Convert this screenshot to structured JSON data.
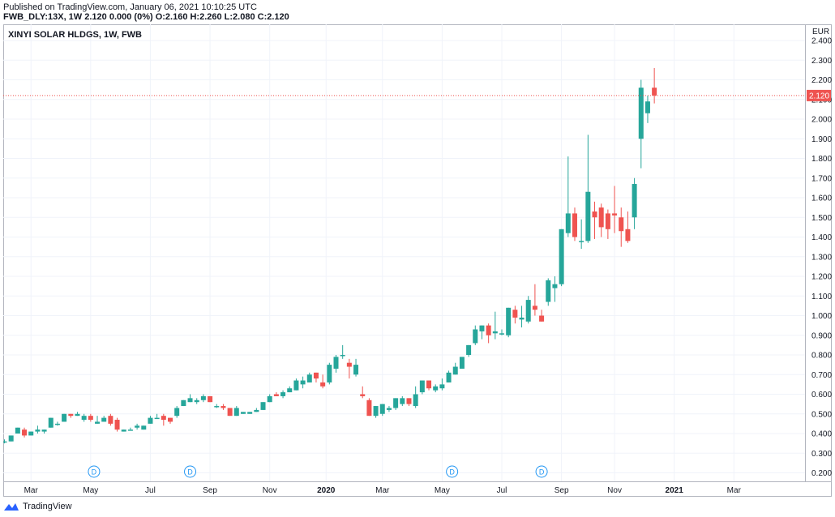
{
  "header": {
    "published": "Published on TradingView.com, January 06, 2021 10:10:25 UTC",
    "symbol_line": "FWB_DLY:13X, 1W  2.120 0.000 (0%) O:2.160 H:2.260 L:2.080 C:2.120"
  },
  "footer": {
    "brand": "TradingView"
  },
  "colors": {
    "up": "#26a69a",
    "down": "#ef5350",
    "grid": "#f0f3fa",
    "text": "#131722",
    "price_line": "#ef5350"
  },
  "chart_data": {
    "type": "candlestick",
    "title": "XINYI SOLAR HLDGS, 1W, FWB",
    "currency": "EUR",
    "current_price": "2.120",
    "ylim": [
      0.15,
      2.45
    ],
    "y_ticks": [
      "2.400",
      "2.300",
      "2.200",
      "2.100",
      "2.000",
      "1.900",
      "1.800",
      "1.700",
      "1.600",
      "1.500",
      "1.400",
      "1.300",
      "1.200",
      "1.100",
      "1.000",
      "0.900",
      "0.800",
      "0.700",
      "0.600",
      "0.500",
      "0.400",
      "0.300",
      "0.200"
    ],
    "x_ticks": [
      {
        "label": "Mar",
        "week": 4
      },
      {
        "label": "May",
        "week": 13
      },
      {
        "label": "Jul",
        "week": 22
      },
      {
        "label": "Sep",
        "week": 31
      },
      {
        "label": "Nov",
        "week": 40
      },
      {
        "label": "2020",
        "week": 48.5
      },
      {
        "label": "Mar",
        "week": 57
      },
      {
        "label": "May",
        "week": 66
      },
      {
        "label": "Jul",
        "week": 75
      },
      {
        "label": "Sep",
        "week": 84
      },
      {
        "label": "Nov",
        "week": 92
      },
      {
        "label": "2021",
        "week": 101
      },
      {
        "label": "Mar",
        "week": 110
      }
    ],
    "dividend_markers": [
      {
        "label": "D",
        "week": 13.5
      },
      {
        "label": "D",
        "week": 28
      },
      {
        "label": "D",
        "week": 67.5
      },
      {
        "label": "D",
        "week": 81
      }
    ],
    "candles": [
      {
        "o": 0.36,
        "h": 0.37,
        "l": 0.35,
        "c": 0.36
      },
      {
        "o": 0.36,
        "h": 0.39,
        "l": 0.36,
        "c": 0.39
      },
      {
        "o": 0.4,
        "h": 0.43,
        "l": 0.4,
        "c": 0.43
      },
      {
        "o": 0.42,
        "h": 0.43,
        "l": 0.38,
        "c": 0.39
      },
      {
        "o": 0.39,
        "h": 0.41,
        "l": 0.39,
        "c": 0.41
      },
      {
        "o": 0.41,
        "h": 0.44,
        "l": 0.4,
        "c": 0.42
      },
      {
        "o": 0.41,
        "h": 0.42,
        "l": 0.4,
        "c": 0.42
      },
      {
        "o": 0.43,
        "h": 0.48,
        "l": 0.43,
        "c": 0.48
      },
      {
        "o": 0.45,
        "h": 0.46,
        "l": 0.44,
        "c": 0.45
      },
      {
        "o": 0.46,
        "h": 0.5,
        "l": 0.46,
        "c": 0.5
      },
      {
        "o": 0.5,
        "h": 0.5,
        "l": 0.48,
        "c": 0.49
      },
      {
        "o": 0.49,
        "h": 0.51,
        "l": 0.49,
        "c": 0.5
      },
      {
        "o": 0.47,
        "h": 0.5,
        "l": 0.46,
        "c": 0.49
      },
      {
        "o": 0.49,
        "h": 0.5,
        "l": 0.46,
        "c": 0.47
      },
      {
        "o": 0.45,
        "h": 0.49,
        "l": 0.45,
        "c": 0.46
      },
      {
        "o": 0.46,
        "h": 0.49,
        "l": 0.46,
        "c": 0.48
      },
      {
        "o": 0.49,
        "h": 0.5,
        "l": 0.44,
        "c": 0.45
      },
      {
        "o": 0.47,
        "h": 0.48,
        "l": 0.41,
        "c": 0.42
      },
      {
        "o": 0.41,
        "h": 0.42,
        "l": 0.41,
        "c": 0.42
      },
      {
        "o": 0.42,
        "h": 0.43,
        "l": 0.42,
        "c": 0.42
      },
      {
        "o": 0.43,
        "h": 0.45,
        "l": 0.42,
        "c": 0.44
      },
      {
        "o": 0.42,
        "h": 0.44,
        "l": 0.42,
        "c": 0.44
      },
      {
        "o": 0.45,
        "h": 0.49,
        "l": 0.45,
        "c": 0.48
      },
      {
        "o": 0.48,
        "h": 0.5,
        "l": 0.48,
        "c": 0.48
      },
      {
        "o": 0.49,
        "h": 0.5,
        "l": 0.44,
        "c": 0.47
      },
      {
        "o": 0.48,
        "h": 0.48,
        "l": 0.45,
        "c": 0.46
      },
      {
        "o": 0.49,
        "h": 0.54,
        "l": 0.48,
        "c": 0.53
      },
      {
        "o": 0.54,
        "h": 0.57,
        "l": 0.54,
        "c": 0.57
      },
      {
        "o": 0.56,
        "h": 0.6,
        "l": 0.56,
        "c": 0.58
      },
      {
        "o": 0.56,
        "h": 0.58,
        "l": 0.55,
        "c": 0.57
      },
      {
        "o": 0.57,
        "h": 0.6,
        "l": 0.56,
        "c": 0.59
      },
      {
        "o": 0.59,
        "h": 0.59,
        "l": 0.56,
        "c": 0.56
      },
      {
        "o": 0.54,
        "h": 0.55,
        "l": 0.53,
        "c": 0.54
      },
      {
        "o": 0.54,
        "h": 0.55,
        "l": 0.52,
        "c": 0.53
      },
      {
        "o": 0.53,
        "h": 0.53,
        "l": 0.49,
        "c": 0.49
      },
      {
        "o": 0.49,
        "h": 0.54,
        "l": 0.49,
        "c": 0.53
      },
      {
        "o": 0.5,
        "h": 0.51,
        "l": 0.5,
        "c": 0.51
      },
      {
        "o": 0.5,
        "h": 0.51,
        "l": 0.5,
        "c": 0.51
      },
      {
        "o": 0.51,
        "h": 0.53,
        "l": 0.51,
        "c": 0.52
      },
      {
        "o": 0.52,
        "h": 0.56,
        "l": 0.52,
        "c": 0.56
      },
      {
        "o": 0.56,
        "h": 0.6,
        "l": 0.56,
        "c": 0.59
      },
      {
        "o": 0.6,
        "h": 0.61,
        "l": 0.59,
        "c": 0.59
      },
      {
        "o": 0.59,
        "h": 0.62,
        "l": 0.58,
        "c": 0.61
      },
      {
        "o": 0.61,
        "h": 0.64,
        "l": 0.61,
        "c": 0.63
      },
      {
        "o": 0.62,
        "h": 0.68,
        "l": 0.62,
        "c": 0.67
      },
      {
        "o": 0.65,
        "h": 0.69,
        "l": 0.63,
        "c": 0.67
      },
      {
        "o": 0.66,
        "h": 0.71,
        "l": 0.66,
        "c": 0.7
      },
      {
        "o": 0.71,
        "h": 0.71,
        "l": 0.66,
        "c": 0.68
      },
      {
        "o": 0.66,
        "h": 0.7,
        "l": 0.63,
        "c": 0.64
      },
      {
        "o": 0.66,
        "h": 0.76,
        "l": 0.65,
        "c": 0.75
      },
      {
        "o": 0.73,
        "h": 0.8,
        "l": 0.71,
        "c": 0.79
      },
      {
        "o": 0.8,
        "h": 0.85,
        "l": 0.78,
        "c": 0.8
      },
      {
        "o": 0.76,
        "h": 0.78,
        "l": 0.68,
        "c": 0.74
      },
      {
        "o": 0.7,
        "h": 0.78,
        "l": 0.69,
        "c": 0.75
      },
      {
        "o": 0.6,
        "h": 0.64,
        "l": 0.58,
        "c": 0.59
      },
      {
        "o": 0.57,
        "h": 0.58,
        "l": 0.49,
        "c": 0.49
      },
      {
        "o": 0.49,
        "h": 0.54,
        "l": 0.48,
        "c": 0.54
      },
      {
        "o": 0.5,
        "h": 0.55,
        "l": 0.49,
        "c": 0.55
      },
      {
        "o": 0.52,
        "h": 0.54,
        "l": 0.51,
        "c": 0.53
      },
      {
        "o": 0.53,
        "h": 0.58,
        "l": 0.52,
        "c": 0.58
      },
      {
        "o": 0.55,
        "h": 0.59,
        "l": 0.54,
        "c": 0.58
      },
      {
        "o": 0.58,
        "h": 0.58,
        "l": 0.54,
        "c": 0.55
      },
      {
        "o": 0.54,
        "h": 0.64,
        "l": 0.53,
        "c": 0.6
      },
      {
        "o": 0.61,
        "h": 0.67,
        "l": 0.6,
        "c": 0.67
      },
      {
        "o": 0.67,
        "h": 0.67,
        "l": 0.62,
        "c": 0.63
      },
      {
        "o": 0.62,
        "h": 0.65,
        "l": 0.61,
        "c": 0.64
      },
      {
        "o": 0.63,
        "h": 0.68,
        "l": 0.62,
        "c": 0.65
      },
      {
        "o": 0.66,
        "h": 0.72,
        "l": 0.66,
        "c": 0.71
      },
      {
        "o": 0.7,
        "h": 0.76,
        "l": 0.7,
        "c": 0.74
      },
      {
        "o": 0.73,
        "h": 0.79,
        "l": 0.73,
        "c": 0.79
      },
      {
        "o": 0.8,
        "h": 0.85,
        "l": 0.79,
        "c": 0.85
      },
      {
        "o": 0.86,
        "h": 0.95,
        "l": 0.85,
        "c": 0.93
      },
      {
        "o": 0.92,
        "h": 0.95,
        "l": 0.88,
        "c": 0.95
      },
      {
        "o": 0.95,
        "h": 0.96,
        "l": 0.86,
        "c": 0.9
      },
      {
        "o": 0.91,
        "h": 1.02,
        "l": 0.88,
        "c": 0.92
      },
      {
        "o": 0.91,
        "h": 0.93,
        "l": 0.9,
        "c": 0.91
      },
      {
        "o": 0.9,
        "h": 1.04,
        "l": 0.89,
        "c": 1.04
      },
      {
        "o": 1.03,
        "h": 1.05,
        "l": 0.96,
        "c": 0.99
      },
      {
        "o": 0.98,
        "h": 1.05,
        "l": 0.94,
        "c": 0.99
      },
      {
        "o": 0.97,
        "h": 1.1,
        "l": 0.96,
        "c": 1.08
      },
      {
        "o": 1.05,
        "h": 1.16,
        "l": 1.0,
        "c": 1.03
      },
      {
        "o": 1.0,
        "h": 1.03,
        "l": 0.97,
        "c": 0.97
      },
      {
        "o": 1.07,
        "h": 1.19,
        "l": 1.05,
        "c": 1.18
      },
      {
        "o": 1.14,
        "h": 1.2,
        "l": 1.07,
        "c": 1.16
      },
      {
        "o": 1.16,
        "h": 1.44,
        "l": 1.15,
        "c": 1.44
      },
      {
        "o": 1.42,
        "h": 1.81,
        "l": 1.4,
        "c": 1.52
      },
      {
        "o": 1.52,
        "h": 1.55,
        "l": 1.38,
        "c": 1.4
      },
      {
        "o": 1.38,
        "h": 1.49,
        "l": 1.34,
        "c": 1.38
      },
      {
        "o": 1.38,
        "h": 1.92,
        "l": 1.37,
        "c": 1.63
      },
      {
        "o": 1.53,
        "h": 1.58,
        "l": 1.39,
        "c": 1.5
      },
      {
        "o": 1.55,
        "h": 1.57,
        "l": 1.4,
        "c": 1.45
      },
      {
        "o": 1.52,
        "h": 1.54,
        "l": 1.39,
        "c": 1.44
      },
      {
        "o": 1.52,
        "h": 1.66,
        "l": 1.42,
        "c": 1.51
      },
      {
        "o": 1.5,
        "h": 1.55,
        "l": 1.35,
        "c": 1.43
      },
      {
        "o": 1.44,
        "h": 1.53,
        "l": 1.37,
        "c": 1.38
      },
      {
        "o": 1.5,
        "h": 1.7,
        "l": 1.44,
        "c": 1.67
      },
      {
        "o": 1.9,
        "h": 2.2,
        "l": 1.75,
        "c": 2.16
      },
      {
        "o": 2.03,
        "h": 2.12,
        "l": 1.98,
        "c": 2.09
      },
      {
        "o": 2.16,
        "h": 2.26,
        "l": 2.08,
        "c": 2.12
      }
    ]
  }
}
